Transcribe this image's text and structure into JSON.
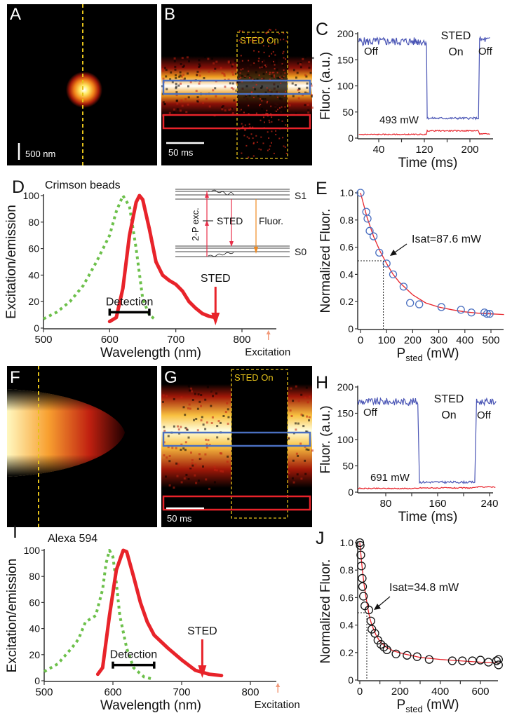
{
  "colors": {
    "blue_trace": "#4a55b5",
    "red_trace": "#e8232a",
    "emission": "#e8232a",
    "excitation": "#6cc04a",
    "sted_box": "#e5c21a",
    "marker": "#4a6fc0",
    "excitation_arrow": "#f29a7a"
  },
  "panels": {
    "A": {
      "label": "A",
      "scale_bar": "500 nm"
    },
    "B": {
      "label": "B",
      "sted_on": "STED On",
      "scale_bar": "50 ms"
    },
    "F": {
      "label": "F"
    },
    "G": {
      "label": "G",
      "sted_on": "STED On",
      "scale_bar": "50 ms"
    }
  },
  "chart_data": [
    {
      "id": "C",
      "label": "C",
      "type": "line",
      "xlabel": "Time (ms)",
      "ylabel": "Fluor. (a.u.)",
      "xlim": [
        0,
        235
      ],
      "ylim": [
        0,
        200
      ],
      "xticks": [
        40,
        120,
        200
      ],
      "xminor": [
        80,
        160
      ],
      "yticks": [
        0,
        50,
        100,
        150,
        200
      ],
      "annotations": {
        "off_left": "Off",
        "sted": "STED",
        "on": "On",
        "off_right": "Off",
        "power": "493 mW"
      },
      "series": [
        {
          "name": "blue ROI",
          "color": "blue",
          "segments": [
            {
              "x0": 5,
              "x1": 124,
              "y": 185,
              "noise": 8
            },
            {
              "x0": 125,
              "x1": 215,
              "y": 38,
              "noise": 2
            },
            {
              "x0": 217,
              "x1": 235,
              "y": 188,
              "noise": 6
            }
          ]
        },
        {
          "name": "red ROI",
          "color": "red",
          "segments": [
            {
              "x0": 5,
              "x1": 124,
              "y": 7,
              "noise": 1
            },
            {
              "x0": 125,
              "x1": 215,
              "y": 14,
              "noise": 1
            },
            {
              "x0": 217,
              "x1": 235,
              "y": 8,
              "noise": 1
            }
          ]
        }
      ]
    },
    {
      "id": "D",
      "label": "D",
      "type": "line",
      "title": "Crimson beads",
      "xlabel": "Wavelength (nm)",
      "ylabel": "Excitation/emission",
      "xlim": [
        500,
        850
      ],
      "ylim": [
        0,
        100
      ],
      "xticks": [
        500,
        600,
        700,
        800
      ],
      "yticks": [
        0,
        20,
        40,
        60,
        80,
        100
      ],
      "series": [
        {
          "name": "excitation",
          "style": "dotted",
          "x": [
            500,
            520,
            540,
            560,
            580,
            600,
            610,
            620,
            630,
            640,
            650,
            660,
            670
          ],
          "y": [
            7,
            12,
            20,
            32,
            50,
            70,
            88,
            100,
            92,
            60,
            22,
            10,
            6
          ]
        },
        {
          "name": "emission",
          "style": "solid",
          "x": [
            600,
            610,
            620,
            630,
            640,
            645,
            650,
            660,
            670,
            680,
            690,
            700,
            710,
            720,
            730,
            740,
            750,
            760
          ],
          "y": [
            5,
            8,
            30,
            70,
            95,
            100,
            97,
            75,
            50,
            40,
            36,
            33,
            28,
            20,
            15,
            11,
            9,
            8
          ]
        }
      ],
      "detection": {
        "label": "Detection",
        "range": [
          600,
          660
        ],
        "y": 12
      },
      "sted": {
        "label": "STED",
        "x": 760
      },
      "excitation": {
        "label": "Excitation",
        "x": 840
      },
      "inset": {
        "s1": "S1",
        "s0": "S0",
        "two_p": "2-P exc.",
        "sted": "STED",
        "fluor": "Fluor."
      }
    },
    {
      "id": "E",
      "label": "E",
      "type": "scatter",
      "xlabel_main": "P",
      "xlabel_sub": "sted",
      "xlabel_unit": " (mW)",
      "ylabel": "Normalized Fluor.",
      "xlim": [
        0,
        550
      ],
      "ylim": [
        0,
        1.0
      ],
      "xticks": [
        0,
        100,
        200,
        300,
        400,
        500
      ],
      "yticks": [
        0,
        0.2,
        0.4,
        0.6,
        0.8,
        1.0
      ],
      "ytick_labels": [
        "0",
        "0.2",
        "0.4",
        "0.6",
        "0.8",
        "1.0"
      ],
      "points": {
        "x": [
          0,
          22,
          27,
          35,
          50,
          72,
          100,
          125,
          165,
          190,
          225,
          310,
          385,
          425,
          475,
          485,
          495
        ],
        "y": [
          1.0,
          0.86,
          0.81,
          0.72,
          0.68,
          0.56,
          0.48,
          0.4,
          0.31,
          0.19,
          0.18,
          0.16,
          0.14,
          0.12,
          0.12,
          0.11,
          0.11
        ]
      },
      "fit": {
        "x": [
          0,
          25,
          50,
          75,
          100,
          125,
          150,
          200,
          250,
          300,
          350,
          400,
          450,
          500,
          550
        ],
        "y": [
          1.0,
          0.82,
          0.68,
          0.57,
          0.48,
          0.4,
          0.34,
          0.25,
          0.19,
          0.16,
          0.14,
          0.125,
          0.115,
          0.11,
          0.105
        ]
      },
      "isat": {
        "label": "Isat=87.6 mW",
        "x": 87.6,
        "y": 0.5
      }
    },
    {
      "id": "H",
      "label": "H",
      "type": "line",
      "xlabel": "Time (ms)",
      "ylabel": "Fluor. (a.u.)",
      "xlim": [
        37,
        250
      ],
      "ylim": [
        0,
        200
      ],
      "xticks": [
        80,
        160,
        240
      ],
      "xminor": [
        120,
        200
      ],
      "yticks": [
        0,
        50,
        100,
        150,
        200
      ],
      "annotations": {
        "off_left": "Off",
        "sted": "STED",
        "on": "On",
        "off_right": "Off",
        "power": "691 mW"
      },
      "series": [
        {
          "name": "blue ROI",
          "color": "blue",
          "segments": [
            {
              "x0": 37,
              "x1": 130,
              "y": 172,
              "noise": 7
            },
            {
              "x0": 132,
              "x1": 218,
              "y": 19,
              "noise": 2
            },
            {
              "x0": 220,
              "x1": 250,
              "y": 172,
              "noise": 6
            }
          ]
        },
        {
          "name": "red ROI",
          "color": "red",
          "segments": [
            {
              "x0": 37,
              "x1": 130,
              "y": 7,
              "noise": 1
            },
            {
              "x0": 131,
              "x1": 218,
              "y": 8,
              "noise": 1
            },
            {
              "x0": 219,
              "x1": 250,
              "y": 10,
              "noise": 1
            }
          ]
        }
      ]
    },
    {
      "id": "I",
      "label": "I",
      "type": "line",
      "title": "Alexa 594",
      "xlabel": "Wavelength (nm)",
      "ylabel": "Excitation/emission",
      "xlim": [
        500,
        850
      ],
      "ylim": [
        0,
        100
      ],
      "xticks": [
        500,
        600,
        700,
        800
      ],
      "yticks": [
        0,
        20,
        40,
        60,
        80,
        100
      ],
      "series": [
        {
          "name": "excitation",
          "style": "dotted",
          "x": [
            500,
            520,
            540,
            550,
            560,
            575,
            585,
            590,
            595,
            600,
            605,
            610,
            620,
            630,
            645,
            660
          ],
          "y": [
            7,
            13,
            25,
            32,
            45,
            50,
            70,
            90,
            100,
            95,
            75,
            50,
            25,
            10,
            3,
            1
          ]
        },
        {
          "name": "emission",
          "style": "solid",
          "x": [
            578,
            585,
            595,
            605,
            615,
            620,
            630,
            640,
            650,
            660,
            680,
            700,
            720,
            740,
            758
          ],
          "y": [
            5,
            10,
            50,
            85,
            100,
            99,
            80,
            60,
            45,
            35,
            25,
            16,
            8,
            5,
            4
          ]
        }
      ],
      "detection": {
        "label": "Detection",
        "range": [
          600,
          660
        ],
        "y": 12
      },
      "sted": {
        "label": "STED",
        "x": 730
      },
      "excitation": {
        "label": "Excitation",
        "x": 840
      }
    },
    {
      "id": "J",
      "label": "J",
      "type": "scatter",
      "xlabel_main": "P",
      "xlabel_sub": "sted",
      "xlabel_unit": " (mW)",
      "ylabel": "Normalized Fluor.",
      "xlim": [
        0,
        690
      ],
      "ylim": [
        0,
        1.0
      ],
      "xticks": [
        0,
        200,
        400,
        600
      ],
      "xminor": [
        100,
        300,
        500
      ],
      "yticks": [
        0,
        0.2,
        0.4,
        0.6,
        0.8,
        1.0
      ],
      "ytick_labels": [
        "0",
        "0.2",
        "0.4",
        "0.6",
        "0.8",
        "1.0"
      ],
      "points": {
        "x": [
          0,
          2,
          5,
          8,
          12,
          14,
          18,
          25,
          45,
          55,
          60,
          75,
          90,
          105,
          120,
          135,
          180,
          235,
          285,
          345,
          460,
          510,
          560,
          600,
          640,
          680,
          690,
          690
        ],
        "y": [
          1.0,
          0.98,
          0.91,
          0.83,
          0.74,
          0.68,
          0.61,
          0.54,
          0.51,
          0.43,
          0.37,
          0.34,
          0.29,
          0.26,
          0.24,
          0.22,
          0.19,
          0.18,
          0.17,
          0.15,
          0.14,
          0.14,
          0.14,
          0.145,
          0.13,
          0.14,
          0.15,
          0.11
        ]
      },
      "fit": {
        "x": [
          0,
          10,
          20,
          30,
          40,
          50,
          60,
          80,
          100,
          130,
          170,
          220,
          300,
          400,
          500,
          600,
          690
        ],
        "y": [
          1.0,
          0.84,
          0.71,
          0.61,
          0.52,
          0.45,
          0.4,
          0.33,
          0.28,
          0.24,
          0.21,
          0.19,
          0.165,
          0.15,
          0.14,
          0.13,
          0.125
        ]
      },
      "isat": {
        "label": "Isat=34.8 mW",
        "x": 34.8,
        "y": 0.49
      }
    }
  ]
}
